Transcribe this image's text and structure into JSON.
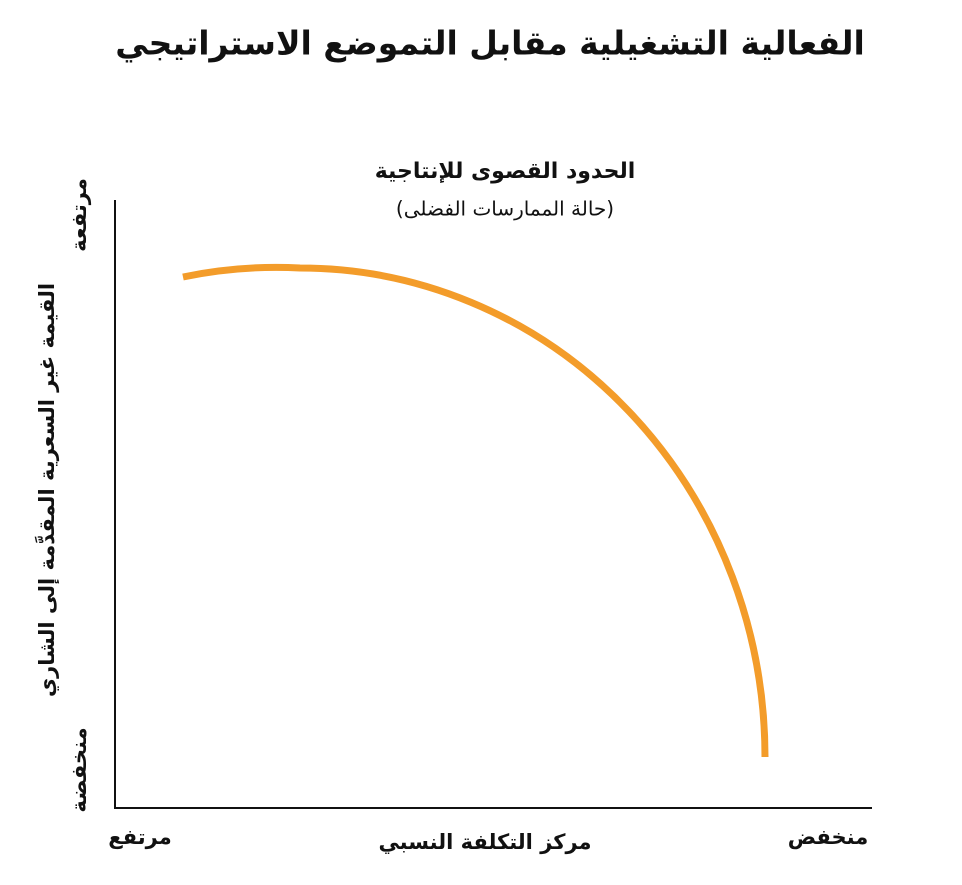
{
  "title": "الفعالية التشغيلية مقابل التموضع الاستراتيجي",
  "frontier": {
    "label": "الحدود القصوى للإنتاجية",
    "sublabel": "(حالة الممارسات الفضلى)"
  },
  "y_axis": {
    "label": "القيمة غير السعرية المقدَّمة إلى الشاري",
    "high": "مرتفعة",
    "low": "منخفضة"
  },
  "x_axis": {
    "label": "مركز التكلفة النسبي",
    "high": "مرتفع",
    "low": "منخفض"
  }
}
